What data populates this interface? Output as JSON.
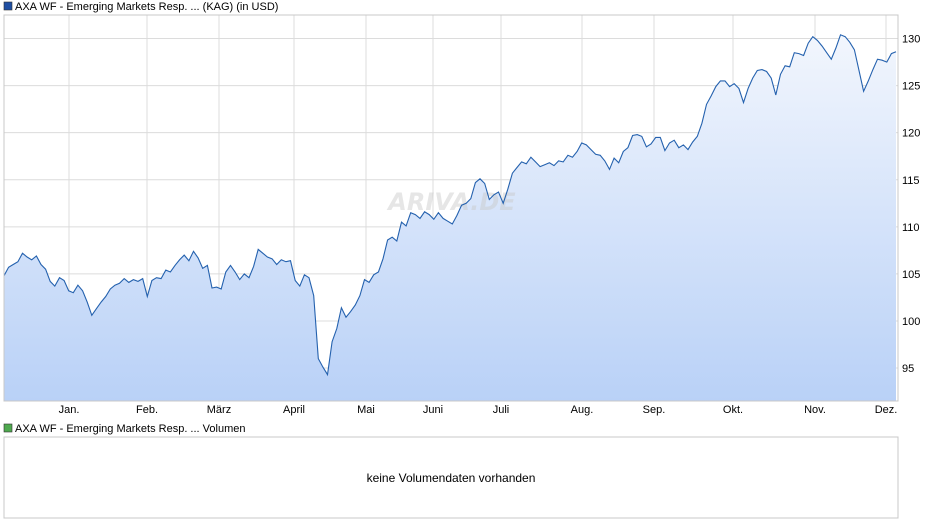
{
  "price_chart": {
    "legend_label": "AXA WF - Emerging Markets Resp. ... (KAG) (in USD)",
    "legend_color": "#1f4fa3",
    "line_color": "#2461ae",
    "fill_top_color": "#f2f6fd",
    "fill_bottom_color": "#b9d1f7",
    "grid_color": "#dcdcdc",
    "watermark": "ARIVA.DE"
  },
  "volume_chart": {
    "legend_label": "AXA WF - Emerging Markets Resp. ... Volumen",
    "legend_color": "#4ea94e",
    "message": "keine Volumendaten vorhanden"
  },
  "chart_data": {
    "type": "area",
    "title": "",
    "xlabel": "",
    "ylabel": "",
    "x_ticks": [
      "Jan.",
      "Feb.",
      "März",
      "April",
      "Mai",
      "Juni",
      "Juli",
      "Aug.",
      "Sep.",
      "Okt.",
      "Nov.",
      "Dez."
    ],
    "y_ticks": [
      95,
      100,
      105,
      110,
      115,
      120,
      125,
      130
    ],
    "ylim": [
      91.5,
      132.5
    ],
    "grid": true,
    "legend_position": "top-left",
    "series": [
      {
        "values": [
          104.8,
          105.7,
          106.0,
          106.3,
          107.2,
          106.8,
          106.5,
          106.9,
          106.0,
          105.5,
          104.2,
          103.7,
          104.6,
          104.3,
          103.2,
          103.0,
          103.8,
          103.2,
          102.0,
          100.6,
          101.3,
          102.0,
          102.6,
          103.4,
          103.8,
          104.0,
          104.5,
          104.1,
          104.4,
          104.2,
          104.5,
          102.6,
          104.3,
          104.6,
          104.5,
          105.4,
          105.2,
          105.9,
          106.5,
          107.0,
          106.4,
          107.4,
          106.7,
          105.6,
          105.9,
          103.5,
          103.6,
          103.4,
          105.2,
          105.9,
          105.2,
          104.4,
          105.0,
          104.6,
          105.8,
          107.6,
          107.2,
          106.8,
          106.6,
          106.0,
          106.5,
          106.3,
          106.4,
          104.3,
          103.7,
          104.9,
          104.6,
          102.7,
          96.0,
          95.1,
          94.3,
          97.8,
          99.2,
          101.4,
          100.4,
          101.0,
          101.7,
          102.7,
          104.4,
          104.1,
          104.9,
          105.2,
          106.6,
          108.6,
          108.9,
          108.5,
          110.5,
          110.1,
          111.5,
          111.3,
          110.9,
          111.6,
          111.3,
          110.8,
          111.5,
          110.9,
          110.6,
          110.3,
          111.2,
          112.3,
          112.5,
          113.0,
          114.7,
          115.1,
          114.6,
          112.9,
          113.4,
          113.7,
          112.5,
          114.0,
          115.7,
          116.3,
          116.9,
          116.7,
          117.4,
          116.9,
          116.4,
          116.6,
          116.8,
          116.5,
          117.0,
          116.9,
          117.6,
          117.4,
          118.0,
          118.9,
          118.7,
          118.2,
          117.7,
          117.6,
          117.0,
          116.1,
          117.3,
          116.8,
          118.0,
          118.4,
          119.7,
          119.8,
          119.6,
          118.5,
          118.8,
          119.5,
          119.5,
          118.1,
          118.9,
          119.2,
          118.4,
          118.7,
          118.2,
          119.0,
          119.6,
          121.0,
          123.0,
          123.9,
          124.9,
          125.5,
          125.5,
          124.9,
          125.2,
          124.7,
          123.2,
          124.7,
          125.8,
          126.6,
          126.7,
          126.5,
          125.8,
          124.0,
          126.2,
          127.1,
          127.0,
          128.5,
          128.4,
          128.2,
          129.5,
          130.2,
          129.8,
          129.2,
          128.5,
          127.8,
          129.0,
          130.4,
          130.2,
          129.6,
          128.8,
          126.6,
          124.4,
          125.5,
          126.7,
          127.8,
          127.7,
          127.5,
          128.4,
          128.6
        ]
      }
    ]
  }
}
